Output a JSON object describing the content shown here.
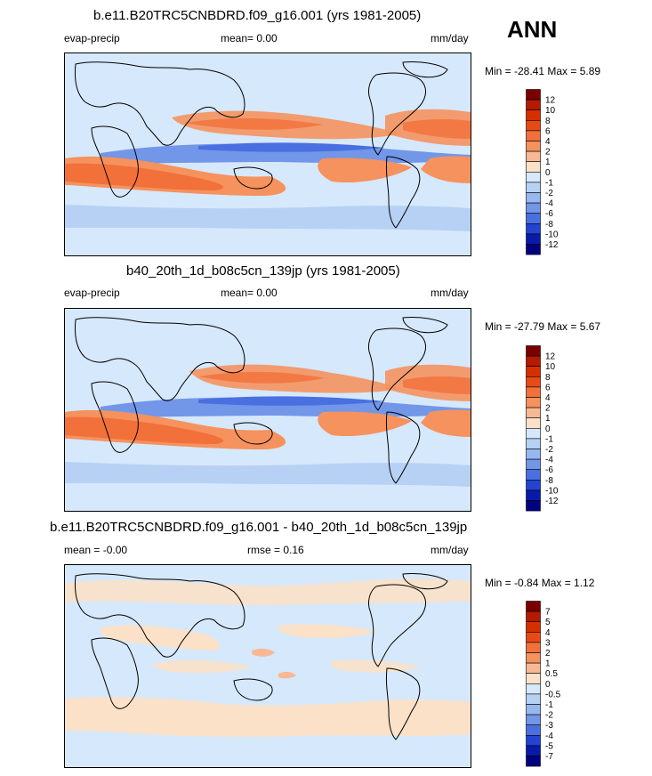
{
  "season": "ANN",
  "panels": [
    {
      "id": "p1",
      "title": "b.e11.B20TRC5CNBDRD.f09_g16.001 (yrs 1981-2005)",
      "variable": "evap-precip",
      "mean_label": "mean=   0.00",
      "rmse_label": "",
      "units": "mm/day",
      "minmax": "Min = -28.41 Max =   5.89",
      "colorbar": {
        "labels": [
          "12",
          "10",
          "8",
          "6",
          "4",
          "2",
          "1",
          "0",
          "-1",
          "-2",
          "-4",
          "-6",
          "-8",
          "-10",
          "-12"
        ],
        "colors": [
          "#7a0000",
          "#b31a00",
          "#d63000",
          "#e84a16",
          "#f2703a",
          "#f5925e",
          "#f8b894",
          "#fbe1c8",
          "#d6e8fb",
          "#b7d1f5",
          "#97b8ef",
          "#7296e8",
          "#4a6fe0",
          "#2244d0",
          "#0a1aa8",
          "#000080"
        ]
      }
    },
    {
      "id": "p2",
      "title": "b40_20th_1d_b08c5cn_139jp (yrs 1981-2005)",
      "variable": "evap-precip",
      "mean_label": "mean=   0.00",
      "rmse_label": "",
      "units": "mm/day",
      "minmax": "Min = -27.79 Max =   5.67",
      "colorbar": {
        "labels": [
          "12",
          "10",
          "8",
          "6",
          "4",
          "2",
          "1",
          "0",
          "-1",
          "-2",
          "-4",
          "-6",
          "-8",
          "-10",
          "-12"
        ],
        "colors": [
          "#7a0000",
          "#b31a00",
          "#d63000",
          "#e84a16",
          "#f2703a",
          "#f5925e",
          "#f8b894",
          "#fbe1c8",
          "#d6e8fb",
          "#b7d1f5",
          "#97b8ef",
          "#7296e8",
          "#4a6fe0",
          "#2244d0",
          "#0a1aa8",
          "#000080"
        ]
      }
    },
    {
      "id": "p3",
      "title": "b.e11.B20TRC5CNBDRD.f09_g16.001 - b40_20th_1d_b08c5cn_139jp",
      "variable": "",
      "mean_label": "mean =  -0.00",
      "rmse_label": "rmse =   0.16",
      "units": "mm/day",
      "minmax": "Min =  -0.84 Max =   1.12",
      "colorbar": {
        "labels": [
          "7",
          "5",
          "4",
          "3",
          "2",
          "1",
          "0.5",
          "0",
          "-0.5",
          "-1",
          "-2",
          "-3",
          "-4",
          "-5",
          "-7"
        ],
        "colors": [
          "#7a0000",
          "#b31a00",
          "#d63000",
          "#e84a16",
          "#f2703a",
          "#f5925e",
          "#f8b894",
          "#fbe1c8",
          "#d6e8fb",
          "#b7d1f5",
          "#97b8ef",
          "#7296e8",
          "#4a6fe0",
          "#2244d0",
          "#0a1aa8",
          "#000080"
        ]
      }
    }
  ]
}
